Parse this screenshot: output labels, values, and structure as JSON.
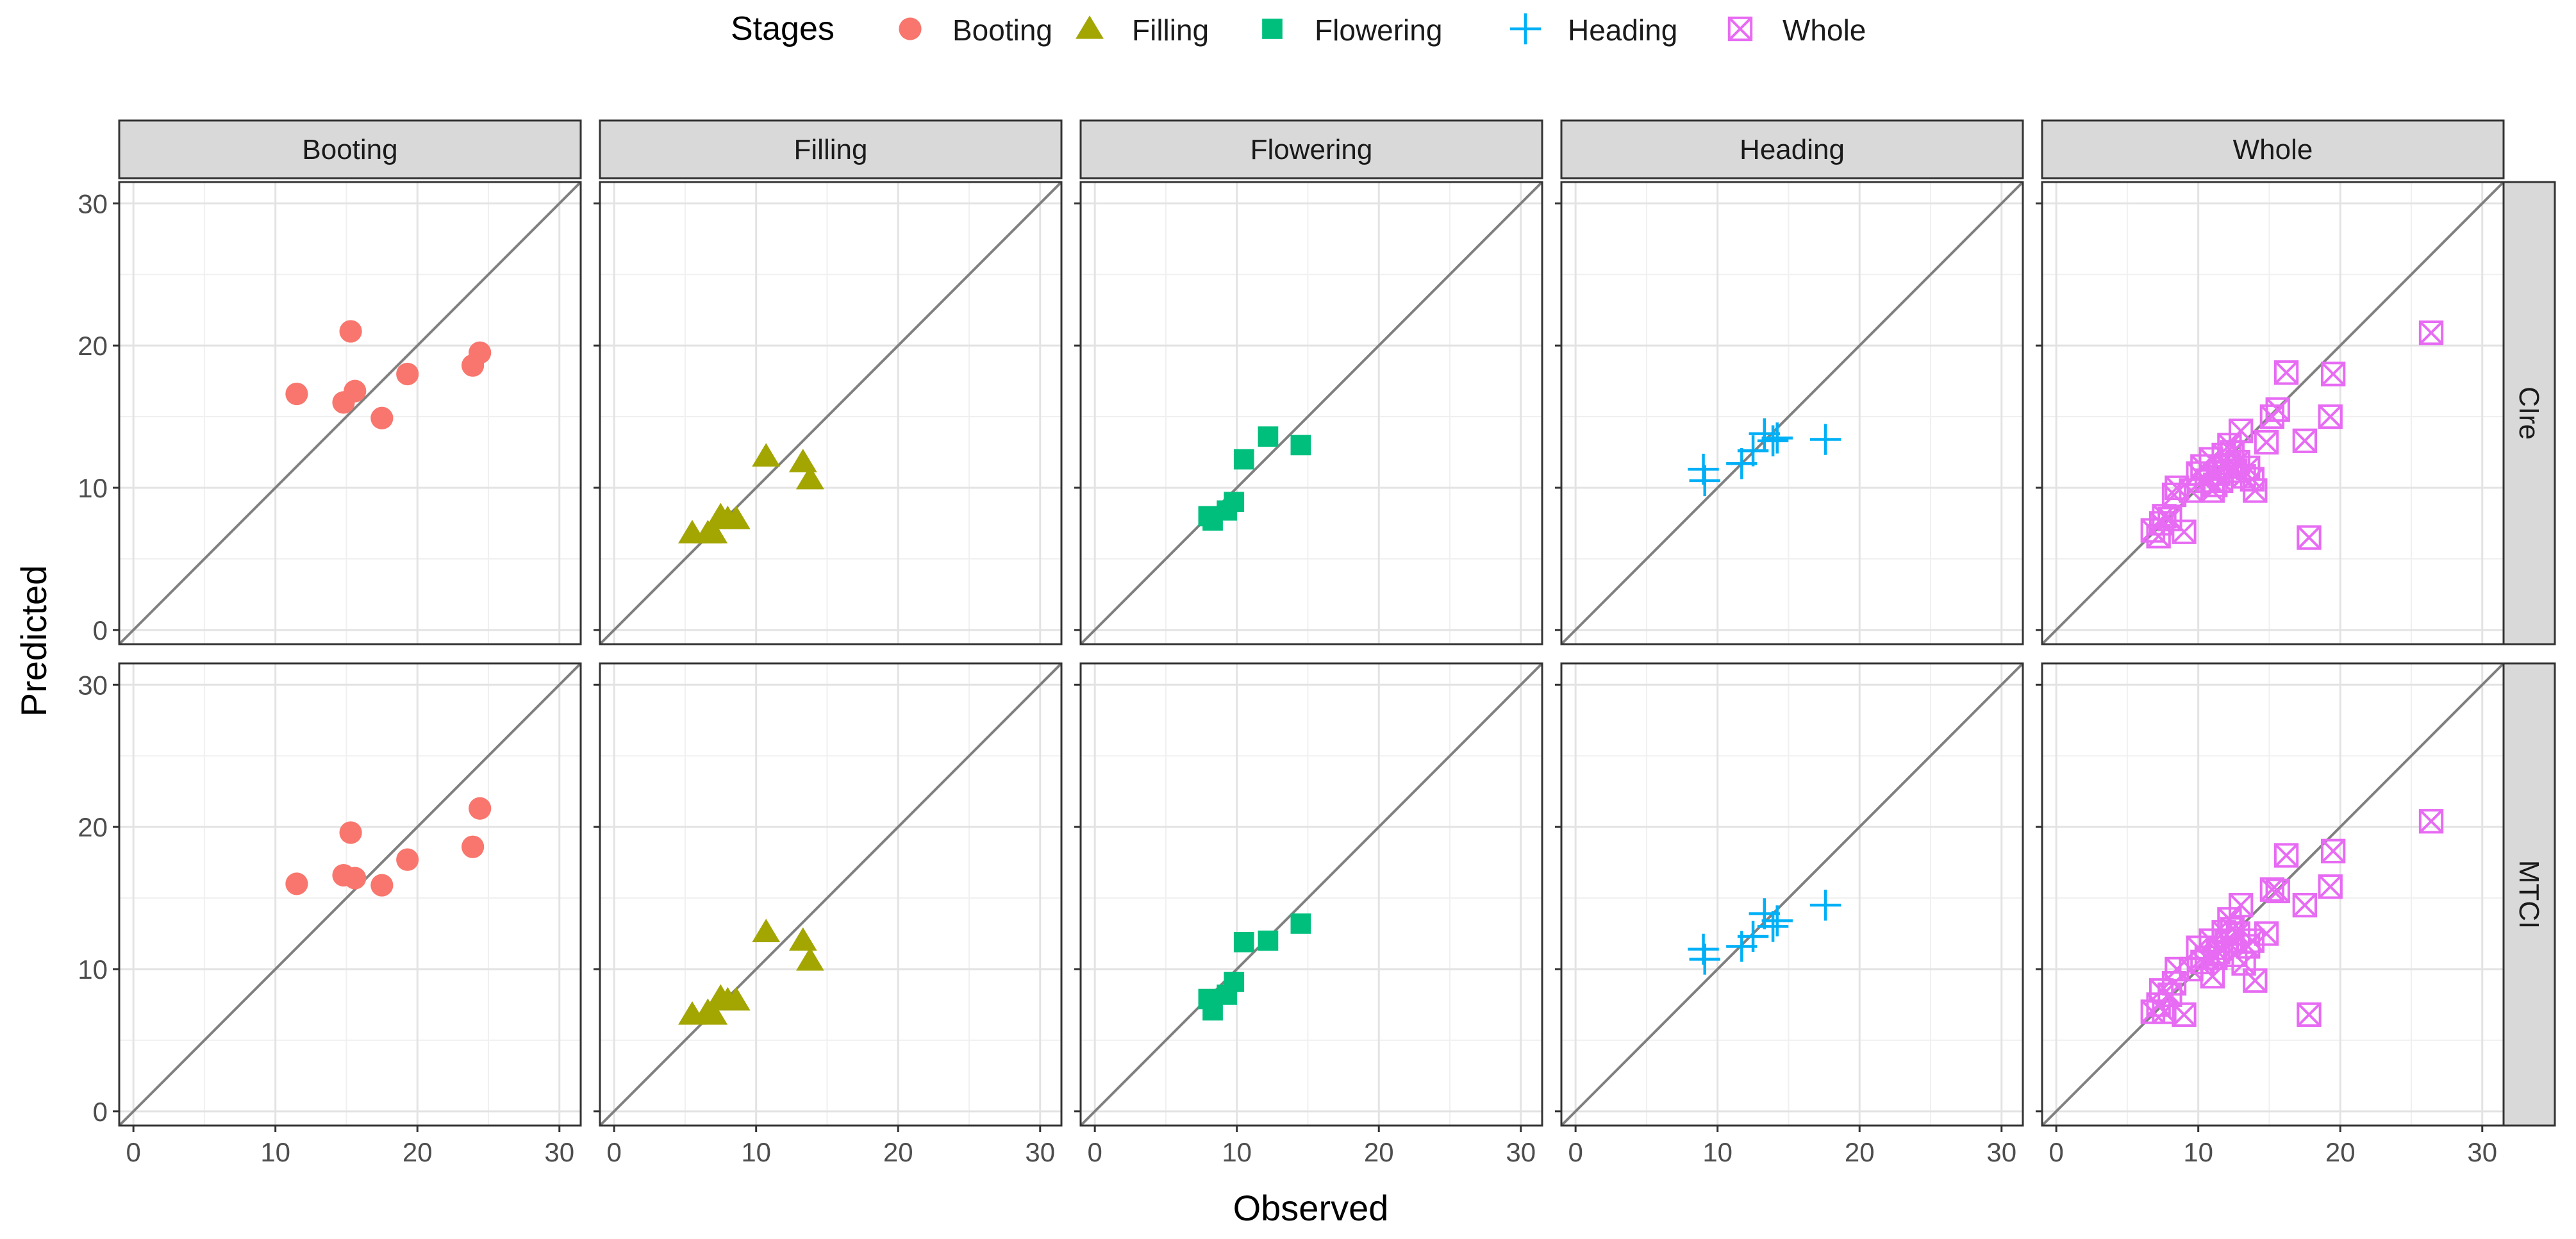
{
  "chart_data": {
    "type": "scatter",
    "title": "",
    "xlabel": "Observed",
    "ylabel": "Predicted",
    "xlim": [
      -1,
      31.5
    ],
    "ylim": [
      -1,
      31.5
    ],
    "x_ticks": [
      0,
      10,
      20,
      30
    ],
    "y_ticks": [
      0,
      10,
      20,
      30
    ],
    "grid": true,
    "reference_line": "y = x",
    "legend": {
      "title": "Stages",
      "placement": "top",
      "entries": [
        {
          "label": "Booting",
          "shape": "circle",
          "color": "#F8766D"
        },
        {
          "label": "Filling",
          "shape": "triangle",
          "color": "#A3A500"
        },
        {
          "label": "Flowering",
          "shape": "square",
          "color": "#00BF7D"
        },
        {
          "label": "Heading",
          "shape": "plus",
          "color": "#00B0F6"
        },
        {
          "label": "Whole",
          "shape": "boxed-x",
          "color": "#E76BF3"
        }
      ]
    },
    "facet_columns": [
      "Booting",
      "Filling",
      "Flowering",
      "Heading",
      "Whole"
    ],
    "facet_rows": [
      "CIre",
      "MTCI"
    ],
    "series": [
      {
        "row": "CIre",
        "stage": "Booting",
        "x": [
          11.5,
          14.8,
          15.3,
          15.6,
          17.5,
          19.3,
          23.9,
          24.4
        ],
        "y": [
          16.6,
          16.0,
          21.0,
          16.8,
          14.9,
          18.0,
          18.6,
          19.5
        ]
      },
      {
        "row": "CIre",
        "stage": "Filling",
        "x": [
          5.5,
          6.6,
          7.0,
          7.5,
          8.0,
          8.6,
          10.7,
          13.3,
          13.8
        ],
        "y": [
          6.8,
          6.8,
          6.8,
          8.0,
          7.8,
          7.8,
          12.2,
          11.8,
          10.6
        ]
      },
      {
        "row": "CIre",
        "stage": "Flowering",
        "x": [
          8.0,
          8.3,
          9.3,
          9.8,
          10.5,
          12.2,
          14.5
        ],
        "y": [
          8.0,
          7.7,
          8.4,
          9.0,
          12.0,
          13.6,
          13.0
        ]
      },
      {
        "row": "CIre",
        "stage": "Heading",
        "x": [
          9.0,
          9.1,
          11.7,
          12.5,
          13.3,
          13.9,
          14.2,
          17.6
        ],
        "y": [
          11.3,
          10.5,
          11.7,
          12.6,
          13.8,
          13.3,
          13.5,
          13.4
        ]
      },
      {
        "row": "CIre",
        "stage": "Whole",
        "x": [
          6.8,
          7.2,
          7.4,
          7.6,
          8.0,
          8.3,
          8.5,
          9.0,
          9.5,
          10.0,
          10.3,
          10.6,
          10.9,
          11.0,
          11.2,
          11.4,
          11.6,
          11.8,
          12.0,
          12.2,
          12.4,
          12.6,
          12.8,
          13.0,
          13.2,
          13.5,
          13.8,
          14.0,
          14.8,
          15.2,
          15.6,
          16.2,
          17.5,
          17.8,
          19.3,
          19.5,
          26.4
        ],
        "y": [
          7.0,
          6.6,
          7.5,
          8.0,
          7.8,
          9.5,
          10.0,
          6.9,
          9.8,
          11.0,
          11.5,
          10.5,
          12.0,
          9.8,
          10.2,
          11.0,
          10.5,
          12.3,
          11.5,
          13.0,
          12.5,
          11.2,
          11.8,
          14.0,
          10.8,
          11.4,
          10.6,
          9.8,
          13.2,
          15.0,
          15.5,
          18.1,
          13.3,
          6.5,
          15.0,
          18.0,
          20.9
        ]
      },
      {
        "row": "MTCI",
        "stage": "Booting",
        "x": [
          11.5,
          14.8,
          15.3,
          15.6,
          17.5,
          19.3,
          23.9,
          24.4
        ],
        "y": [
          16.0,
          16.6,
          19.6,
          16.4,
          15.9,
          17.7,
          18.6,
          21.3
        ]
      },
      {
        "row": "MTCI",
        "stage": "Filling",
        "x": [
          5.5,
          6.6,
          7.0,
          7.5,
          8.0,
          8.6,
          10.7,
          13.3,
          13.8
        ],
        "y": [
          6.8,
          7.0,
          6.8,
          8.0,
          7.8,
          7.8,
          12.6,
          12.0,
          10.6
        ]
      },
      {
        "row": "MTCI",
        "stage": "Flowering",
        "x": [
          8.0,
          8.3,
          9.3,
          9.8,
          10.5,
          12.2,
          14.5
        ],
        "y": [
          7.9,
          7.1,
          8.2,
          9.1,
          11.9,
          12.0,
          13.2
        ]
      },
      {
        "row": "MTCI",
        "stage": "Heading",
        "x": [
          9.0,
          9.1,
          11.7,
          12.5,
          13.3,
          13.9,
          14.2,
          17.6
        ],
        "y": [
          11.4,
          10.7,
          11.6,
          12.3,
          13.9,
          13.0,
          13.4,
          14.5
        ]
      },
      {
        "row": "MTCI",
        "stage": "Whole",
        "x": [
          6.8,
          7.2,
          7.4,
          7.6,
          8.0,
          8.3,
          8.5,
          9.0,
          9.5,
          10.0,
          10.3,
          10.6,
          10.9,
          11.0,
          11.2,
          11.4,
          11.6,
          11.8,
          12.0,
          12.2,
          12.4,
          12.6,
          12.8,
          13.0,
          13.2,
          13.5,
          13.8,
          14.0,
          14.8,
          15.2,
          15.6,
          16.2,
          17.5,
          17.8,
          19.3,
          19.5,
          26.4
        ],
        "y": [
          7.0,
          7.5,
          8.5,
          7.0,
          8.2,
          9.0,
          10.0,
          6.8,
          10.0,
          11.5,
          10.5,
          10.8,
          12.0,
          9.5,
          10.8,
          11.2,
          11.5,
          12.6,
          12.0,
          13.5,
          12.8,
          11.0,
          12.5,
          14.5,
          10.4,
          11.6,
          12.0,
          9.2,
          12.5,
          15.6,
          15.5,
          18.0,
          14.5,
          6.8,
          15.8,
          18.3,
          20.4
        ]
      }
    ]
  }
}
